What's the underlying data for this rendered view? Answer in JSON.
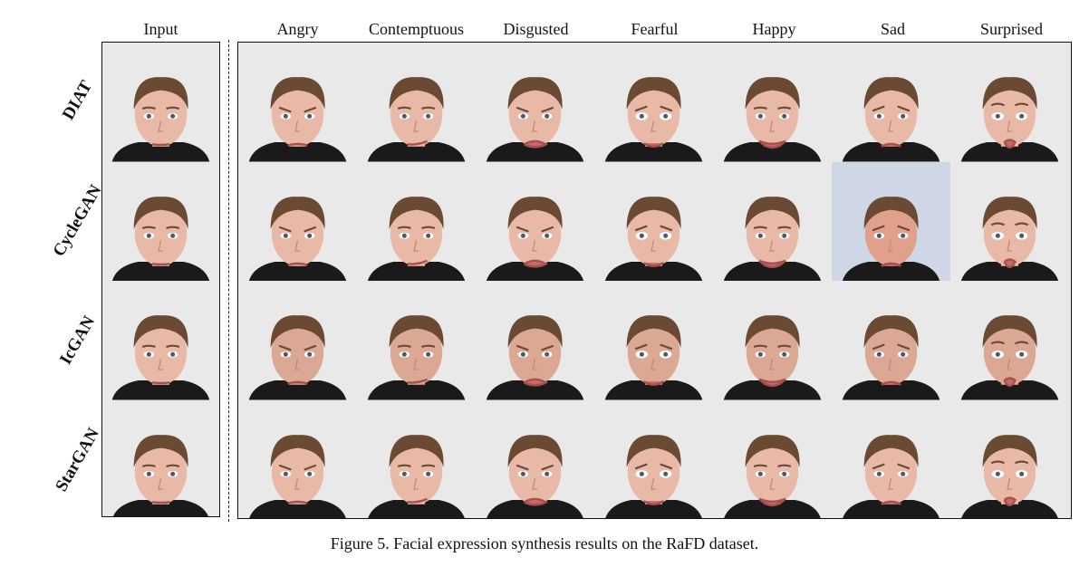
{
  "figure": {
    "column_headers": [
      "Input",
      "Angry",
      "Contemptuous",
      "Disgusted",
      "Fearful",
      "Happy",
      "Sad",
      "Surprised"
    ],
    "row_labels": [
      "DIAT",
      "CycleGAN",
      "IcGAN",
      "StarGAN"
    ],
    "caption": "Figure 5. Facial expression synthesis results on the RaFD dataset.",
    "image_cells": [
      {
        "method": "DIAT",
        "expressions": [
          "Input",
          "Angry",
          "Contemptuous",
          "Disgusted",
          "Fearful",
          "Happy",
          "Sad",
          "Surprised"
        ]
      },
      {
        "method": "CycleGAN",
        "expressions": [
          "Input",
          "Angry",
          "Contemptuous",
          "Disgusted",
          "Fearful",
          "Happy",
          "Sad",
          "Surprised"
        ]
      },
      {
        "method": "IcGAN",
        "expressions": [
          "Input",
          "Angry",
          "Contemptuous",
          "Disgusted",
          "Fearful",
          "Happy",
          "Sad",
          "Surprised"
        ]
      },
      {
        "method": "StarGAN",
        "expressions": [
          "Input",
          "Angry",
          "Contemptuous",
          "Disgusted",
          "Fearful",
          "Happy",
          "Sad",
          "Surprised"
        ]
      }
    ],
    "colors": {
      "photo_background": "#e9e9ea",
      "skin": "#e9b9a8",
      "hair": "#6b4a33",
      "shirt": "#1a1a1a",
      "border": "#111111"
    }
  }
}
